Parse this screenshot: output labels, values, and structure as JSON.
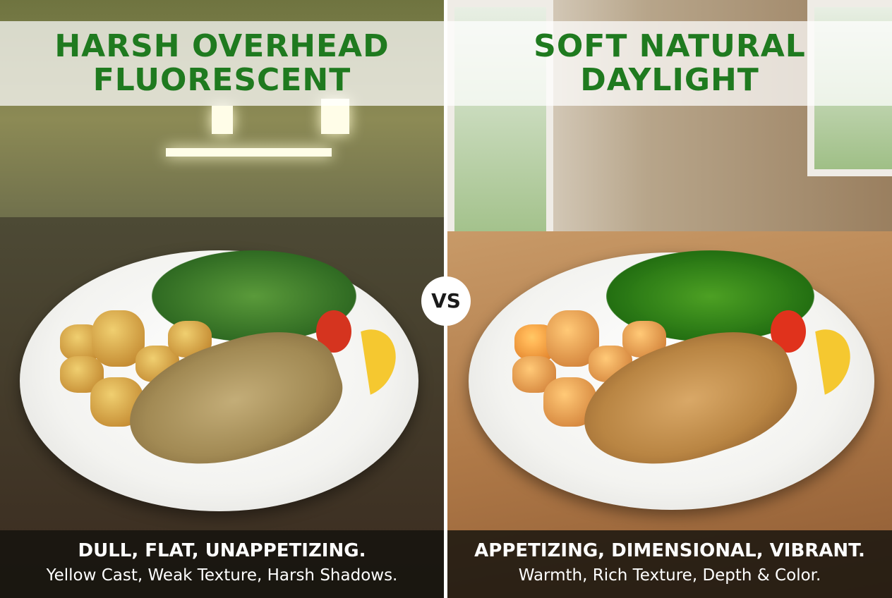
{
  "left": {
    "title_line1": "HARSH OVERHEAD",
    "title_line2": "FLUORESCENT",
    "caption_main": "DULL, FLAT, UNAPPETIZING.",
    "caption_sub": "Yellow Cast, Weak Texture, Harsh Shadows."
  },
  "right": {
    "title_line1": "SOFT NATURAL",
    "title_line2": "DAYLIGHT",
    "caption_main": "APPETIZING, DIMENSIONAL, VIBRANT.",
    "caption_sub": "Warmth, Rich Texture, Depth & Color."
  },
  "vs_label": "VS",
  "colors": {
    "title_green": "#1f7a1f",
    "caption_bg": "#14120e"
  }
}
